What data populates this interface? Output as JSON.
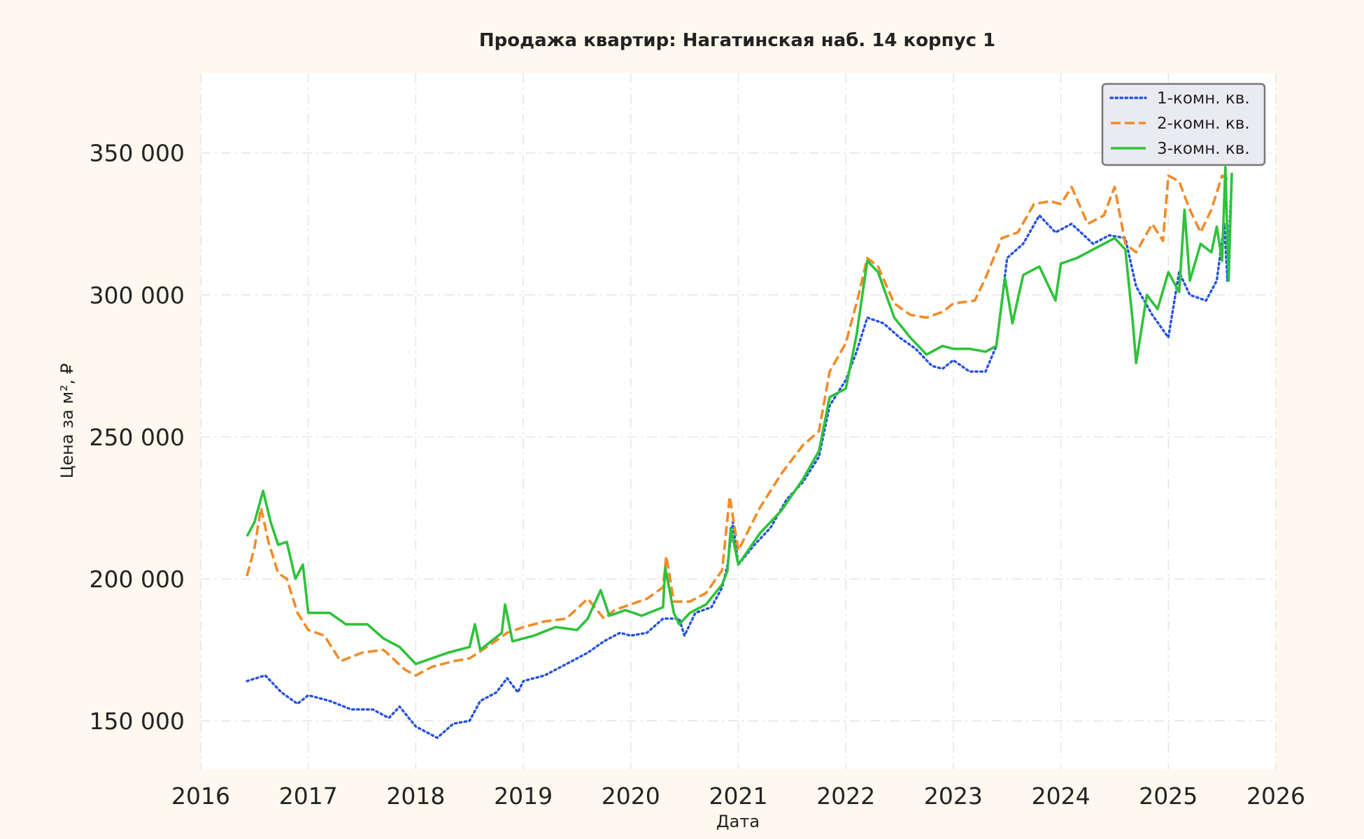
{
  "chart_data": {
    "type": "line",
    "title": "Продажа квартир: Нагатинская наб. 14 корпус 1",
    "xlabel": "Дата",
    "ylabel": "Цена за м², ₽",
    "xlim": [
      2016,
      2026
    ],
    "ylim": [
      133000,
      378000
    ],
    "x_ticks": [
      "2016",
      "2017",
      "2018",
      "2019",
      "2020",
      "2021",
      "2022",
      "2023",
      "2024",
      "2025",
      "2026"
    ],
    "y_ticks": [
      {
        "value": 150000,
        "label": "150 000"
      },
      {
        "value": 200000,
        "label": "200 000"
      },
      {
        "value": 250000,
        "label": "250 000"
      },
      {
        "value": 300000,
        "label": "300 000"
      },
      {
        "value": 350000,
        "label": "350 000"
      }
    ],
    "grid": true,
    "legend_position": "top-right",
    "series": [
      {
        "name": "1-комн. кв.",
        "color": "#2451e0",
        "style": "dotted",
        "points": [
          [
            2016.43,
            164000
          ],
          [
            2016.6,
            166000
          ],
          [
            2016.75,
            160000
          ],
          [
            2016.9,
            156000
          ],
          [
            2017.0,
            159000
          ],
          [
            2017.2,
            157000
          ],
          [
            2017.4,
            154000
          ],
          [
            2017.6,
            154000
          ],
          [
            2017.75,
            151000
          ],
          [
            2017.85,
            155000
          ],
          [
            2018.0,
            148000
          ],
          [
            2018.1,
            146000
          ],
          [
            2018.2,
            144000
          ],
          [
            2018.35,
            149000
          ],
          [
            2018.5,
            150000
          ],
          [
            2018.6,
            157000
          ],
          [
            2018.75,
            160000
          ],
          [
            2018.85,
            165000
          ],
          [
            2018.95,
            160000
          ],
          [
            2019.0,
            164000
          ],
          [
            2019.2,
            166000
          ],
          [
            2019.45,
            171000
          ],
          [
            2019.6,
            174000
          ],
          [
            2019.75,
            178000
          ],
          [
            2019.9,
            181000
          ],
          [
            2020.0,
            180000
          ],
          [
            2020.15,
            181000
          ],
          [
            2020.3,
            186000
          ],
          [
            2020.45,
            186000
          ],
          [
            2020.5,
            180000
          ],
          [
            2020.6,
            188000
          ],
          [
            2020.75,
            190000
          ],
          [
            2020.85,
            197000
          ],
          [
            2020.9,
            205000
          ],
          [
            2020.95,
            220000
          ],
          [
            2021.0,
            205000
          ],
          [
            2021.15,
            212000
          ],
          [
            2021.3,
            218000
          ],
          [
            2021.45,
            228000
          ],
          [
            2021.6,
            234000
          ],
          [
            2021.75,
            243000
          ],
          [
            2021.85,
            261000
          ],
          [
            2022.0,
            270000
          ],
          [
            2022.1,
            280000
          ],
          [
            2022.2,
            292000
          ],
          [
            2022.35,
            290000
          ],
          [
            2022.5,
            285000
          ],
          [
            2022.65,
            281000
          ],
          [
            2022.8,
            275000
          ],
          [
            2022.9,
            274000
          ],
          [
            2023.0,
            277000
          ],
          [
            2023.15,
            273000
          ],
          [
            2023.3,
            273000
          ],
          [
            2023.4,
            282000
          ],
          [
            2023.5,
            313000
          ],
          [
            2023.65,
            318000
          ],
          [
            2023.8,
            328000
          ],
          [
            2023.95,
            322000
          ],
          [
            2024.1,
            325000
          ],
          [
            2024.3,
            318000
          ],
          [
            2024.45,
            321000
          ],
          [
            2024.6,
            320000
          ],
          [
            2024.7,
            303000
          ],
          [
            2024.85,
            293000
          ],
          [
            2025.0,
            285000
          ],
          [
            2025.1,
            308000
          ],
          [
            2025.2,
            300000
          ],
          [
            2025.35,
            298000
          ],
          [
            2025.45,
            305000
          ],
          [
            2025.52,
            325000
          ],
          [
            2025.55,
            305000
          ],
          [
            2025.58,
            333000
          ]
        ]
      },
      {
        "name": "2-комн. кв.",
        "color": "#f28a26",
        "style": "dashed",
        "points": [
          [
            2016.43,
            201000
          ],
          [
            2016.5,
            211000
          ],
          [
            2016.56,
            225000
          ],
          [
            2016.63,
            213000
          ],
          [
            2016.72,
            202000
          ],
          [
            2016.8,
            200000
          ],
          [
            2016.9,
            188000
          ],
          [
            2017.0,
            182000
          ],
          [
            2017.15,
            180000
          ],
          [
            2017.3,
            171000
          ],
          [
            2017.5,
            174000
          ],
          [
            2017.7,
            175000
          ],
          [
            2017.9,
            168000
          ],
          [
            2018.0,
            166000
          ],
          [
            2018.15,
            169000
          ],
          [
            2018.35,
            171000
          ],
          [
            2018.5,
            172000
          ],
          [
            2018.7,
            177000
          ],
          [
            2018.85,
            181000
          ],
          [
            2019.0,
            183000
          ],
          [
            2019.2,
            185000
          ],
          [
            2019.4,
            186000
          ],
          [
            2019.6,
            193000
          ],
          [
            2019.75,
            186000
          ],
          [
            2019.85,
            189000
          ],
          [
            2020.0,
            191000
          ],
          [
            2020.15,
            193000
          ],
          [
            2020.3,
            197000
          ],
          [
            2020.33,
            208000
          ],
          [
            2020.4,
            192000
          ],
          [
            2020.55,
            192000
          ],
          [
            2020.7,
            195000
          ],
          [
            2020.85,
            203000
          ],
          [
            2020.92,
            229000
          ],
          [
            2021.0,
            210000
          ],
          [
            2021.2,
            225000
          ],
          [
            2021.4,
            237000
          ],
          [
            2021.6,
            247000
          ],
          [
            2021.75,
            252000
          ],
          [
            2021.85,
            273000
          ],
          [
            2022.0,
            283000
          ],
          [
            2022.12,
            300000
          ],
          [
            2022.2,
            313000
          ],
          [
            2022.3,
            310000
          ],
          [
            2022.45,
            297000
          ],
          [
            2022.6,
            293000
          ],
          [
            2022.75,
            292000
          ],
          [
            2022.9,
            294000
          ],
          [
            2023.0,
            297000
          ],
          [
            2023.2,
            298000
          ],
          [
            2023.3,
            306000
          ],
          [
            2023.45,
            320000
          ],
          [
            2023.6,
            322000
          ],
          [
            2023.75,
            332000
          ],
          [
            2023.9,
            333000
          ],
          [
            2024.0,
            332000
          ],
          [
            2024.1,
            338000
          ],
          [
            2024.25,
            325000
          ],
          [
            2024.4,
            328000
          ],
          [
            2024.5,
            338000
          ],
          [
            2024.6,
            318000
          ],
          [
            2024.7,
            315000
          ],
          [
            2024.85,
            325000
          ],
          [
            2024.95,
            319000
          ],
          [
            2025.0,
            342000
          ],
          [
            2025.1,
            340000
          ],
          [
            2025.2,
            330000
          ],
          [
            2025.3,
            322000
          ],
          [
            2025.4,
            330000
          ],
          [
            2025.5,
            342000
          ],
          [
            2025.58,
            340000
          ]
        ]
      },
      {
        "name": "3-комн. кв.",
        "color": "#2ec23a",
        "style": "solid",
        "points": [
          [
            2016.43,
            215000
          ],
          [
            2016.5,
            220000
          ],
          [
            2016.58,
            231000
          ],
          [
            2016.65,
            220000
          ],
          [
            2016.72,
            212000
          ],
          [
            2016.8,
            213000
          ],
          [
            2016.88,
            200000
          ],
          [
            2016.95,
            205000
          ],
          [
            2017.0,
            188000
          ],
          [
            2017.2,
            188000
          ],
          [
            2017.35,
            184000
          ],
          [
            2017.55,
            184000
          ],
          [
            2017.7,
            179000
          ],
          [
            2017.85,
            176000
          ],
          [
            2018.0,
            170000
          ],
          [
            2018.15,
            172000
          ],
          [
            2018.3,
            174000
          ],
          [
            2018.5,
            176000
          ],
          [
            2018.55,
            184000
          ],
          [
            2018.6,
            175000
          ],
          [
            2018.8,
            181000
          ],
          [
            2018.83,
            191000
          ],
          [
            2018.9,
            178000
          ],
          [
            2019.1,
            180000
          ],
          [
            2019.3,
            183000
          ],
          [
            2019.5,
            182000
          ],
          [
            2019.6,
            186000
          ],
          [
            2019.72,
            196000
          ],
          [
            2019.8,
            187000
          ],
          [
            2019.95,
            189000
          ],
          [
            2020.1,
            187000
          ],
          [
            2020.3,
            190000
          ],
          [
            2020.32,
            204000
          ],
          [
            2020.4,
            188000
          ],
          [
            2020.45,
            184000
          ],
          [
            2020.55,
            188000
          ],
          [
            2020.7,
            191000
          ],
          [
            2020.85,
            198000
          ],
          [
            2020.9,
            203000
          ],
          [
            2020.93,
            218000
          ],
          [
            2021.0,
            205000
          ],
          [
            2021.2,
            216000
          ],
          [
            2021.4,
            224000
          ],
          [
            2021.6,
            235000
          ],
          [
            2021.75,
            245000
          ],
          [
            2021.85,
            264000
          ],
          [
            2022.0,
            267000
          ],
          [
            2022.1,
            286000
          ],
          [
            2022.2,
            312000
          ],
          [
            2022.3,
            308000
          ],
          [
            2022.45,
            292000
          ],
          [
            2022.6,
            285000
          ],
          [
            2022.75,
            279000
          ],
          [
            2022.9,
            282000
          ],
          [
            2023.0,
            281000
          ],
          [
            2023.15,
            281000
          ],
          [
            2023.3,
            280000
          ],
          [
            2023.4,
            282000
          ],
          [
            2023.48,
            306000
          ],
          [
            2023.55,
            290000
          ],
          [
            2023.65,
            307000
          ],
          [
            2023.8,
            310000
          ],
          [
            2023.95,
            298000
          ],
          [
            2024.0,
            311000
          ],
          [
            2024.15,
            313000
          ],
          [
            2024.3,
            316000
          ],
          [
            2024.5,
            320000
          ],
          [
            2024.6,
            316000
          ],
          [
            2024.67,
            290000
          ],
          [
            2024.7,
            276000
          ],
          [
            2024.8,
            300000
          ],
          [
            2024.9,
            295000
          ],
          [
            2025.0,
            308000
          ],
          [
            2025.1,
            301000
          ],
          [
            2025.15,
            330000
          ],
          [
            2025.2,
            305000
          ],
          [
            2025.3,
            318000
          ],
          [
            2025.4,
            315000
          ],
          [
            2025.45,
            324000
          ],
          [
            2025.5,
            312000
          ],
          [
            2025.53,
            345000
          ],
          [
            2025.56,
            305000
          ],
          [
            2025.59,
            343000
          ]
        ]
      }
    ]
  }
}
